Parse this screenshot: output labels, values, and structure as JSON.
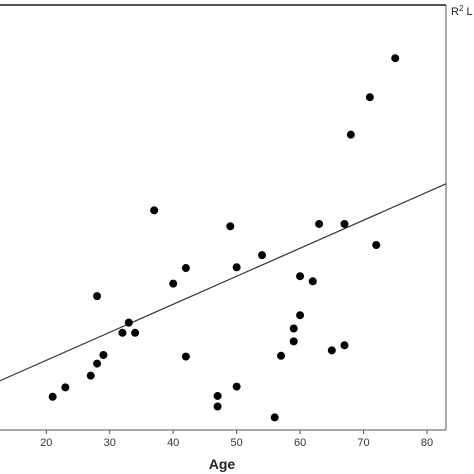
{
  "chart_data": {
    "type": "scatter",
    "title": "",
    "xlabel": "Age",
    "ylabel": "",
    "xlim": [
      12.7,
      83
    ],
    "ylim": [
      0,
      1
    ],
    "grid": false,
    "x_ticks": [
      "20",
      "30",
      "40",
      "50",
      "60",
      "70",
      "80"
    ],
    "legend": {
      "text": "R",
      "superscript": "2",
      "suffix": " L",
      "placement": "top-right"
    },
    "colors": {
      "points": "#000000",
      "fit_line": "#333333",
      "frame": "#555555"
    },
    "points": [
      {
        "x": 21,
        "y": 0.034
      },
      {
        "x": 23,
        "y": 0.058
      },
      {
        "x": 27,
        "y": 0.088
      },
      {
        "x": 28,
        "y": 0.119
      },
      {
        "x": 28,
        "y": 0.292
      },
      {
        "x": 29,
        "y": 0.141
      },
      {
        "x": 32,
        "y": 0.198
      },
      {
        "x": 33,
        "y": 0.224
      },
      {
        "x": 34,
        "y": 0.198
      },
      {
        "x": 37,
        "y": 0.512
      },
      {
        "x": 40,
        "y": 0.324
      },
      {
        "x": 42,
        "y": 0.364
      },
      {
        "x": 42,
        "y": 0.137
      },
      {
        "x": 47,
        "y": 0.036
      },
      {
        "x": 47,
        "y": 0.009
      },
      {
        "x": 49,
        "y": 0.471
      },
      {
        "x": 50,
        "y": 0.366
      },
      {
        "x": 50,
        "y": 0.06
      },
      {
        "x": 54,
        "y": 0.397
      },
      {
        "x": 56,
        "y": -0.019
      },
      {
        "x": 57,
        "y": 0.139
      },
      {
        "x": 59,
        "y": 0.209
      },
      {
        "x": 59,
        "y": 0.176
      },
      {
        "x": 60,
        "y": 0.343
      },
      {
        "x": 60,
        "y": 0.243
      },
      {
        "x": 62,
        "y": 0.33
      },
      {
        "x": 63,
        "y": 0.477
      },
      {
        "x": 65,
        "y": 0.153
      },
      {
        "x": 67,
        "y": 0.477
      },
      {
        "x": 67,
        "y": 0.166
      },
      {
        "x": 68,
        "y": 0.706
      },
      {
        "x": 71,
        "y": 0.802
      },
      {
        "x": 72,
        "y": 0.423
      },
      {
        "x": 75,
        "y": 0.902
      }
    ],
    "fit_line": {
      "x": [
        12.7,
        83
      ],
      "y": [
        0.075,
        0.58
      ]
    }
  }
}
